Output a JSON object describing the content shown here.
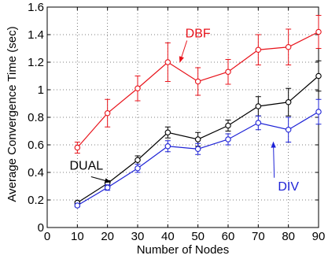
{
  "chart_data": {
    "type": "line",
    "xlabel": "Number of Nodes",
    "ylabel": "Average Convergence Time (sec)",
    "xlim": [
      0,
      90
    ],
    "ylim": [
      0,
      1.6
    ],
    "xticks": [
      0,
      10,
      20,
      30,
      40,
      50,
      60,
      70,
      80,
      90
    ],
    "yticks": [
      0,
      0.2,
      0.4,
      0.6,
      0.8,
      1.0,
      1.2,
      1.4,
      1.6
    ],
    "xtick_labels": [
      "0",
      "10",
      "20",
      "30",
      "40",
      "50",
      "60",
      "70",
      "80",
      "90"
    ],
    "ytick_labels": [
      "0",
      "0.2",
      "0.4",
      "0.6",
      "0.8",
      "1",
      "1.2",
      "1.4",
      "1.6"
    ],
    "grid": true,
    "x": [
      10,
      20,
      30,
      40,
      50,
      60,
      70,
      80,
      90
    ],
    "series": [
      {
        "name": "DBF",
        "color": "#e8121a",
        "values": [
          0.58,
          0.83,
          1.01,
          1.2,
          1.06,
          1.13,
          1.29,
          1.31,
          1.42
        ],
        "err": [
          0.04,
          0.1,
          0.09,
          0.14,
          0.1,
          0.09,
          0.11,
          0.13,
          0.12
        ],
        "annotation": {
          "text": "DBF",
          "x": 50,
          "y": 1.38,
          "arrow_to_x": 44,
          "arrow_to_y": 1.2
        }
      },
      {
        "name": "DUAL",
        "color": "#000000",
        "values": [
          0.18,
          0.32,
          0.49,
          0.69,
          0.64,
          0.74,
          0.88,
          0.91,
          1.1
        ],
        "err": [
          0.01,
          0.02,
          0.03,
          0.04,
          0.05,
          0.04,
          0.07,
          0.1,
          0.11
        ],
        "annotation": {
          "text": "DUAL",
          "x": 13,
          "y": 0.42,
          "arrow_to_x": 21,
          "arrow_to_y": 0.33
        }
      },
      {
        "name": "DIV",
        "color": "#1d22d6",
        "values": [
          0.16,
          0.29,
          0.43,
          0.59,
          0.57,
          0.64,
          0.76,
          0.71,
          0.84
        ],
        "err": [
          0.01,
          0.02,
          0.03,
          0.04,
          0.04,
          0.04,
          0.05,
          0.09,
          0.09
        ],
        "annotation": {
          "text": "DIV",
          "x": 80,
          "y": 0.27,
          "arrow_to_x": 75,
          "arrow_to_y": 0.62
        }
      }
    ]
  }
}
